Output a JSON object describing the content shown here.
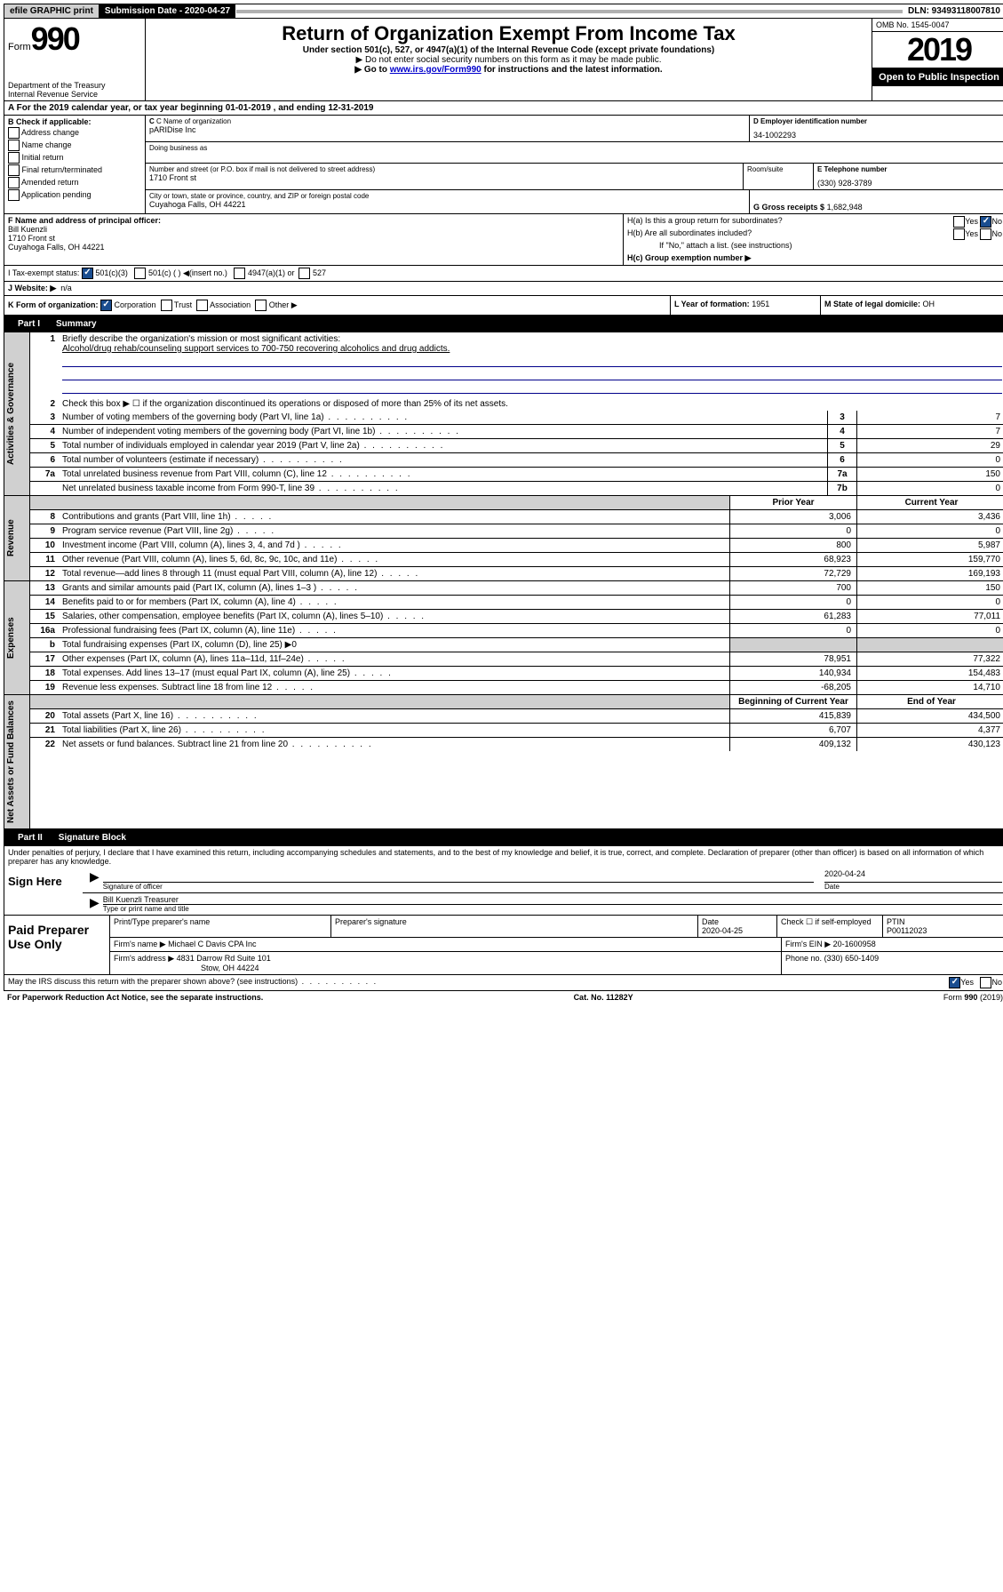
{
  "topbar": {
    "efile": "efile GRAPHIC print",
    "subdate_label": "Submission Date  -  2020-04-27",
    "dln": "DLN: 93493118007810"
  },
  "header": {
    "form_label": "Form",
    "form_num": "990",
    "dept": "Department of the Treasury\nInternal Revenue Service",
    "title": "Return of Organization Exempt From Income Tax",
    "subtitle": "Under section 501(c), 527, or 4947(a)(1) of the Internal Revenue Code (except private foundations)",
    "note1": "▶ Do not enter social security numbers on this form as it may be made public.",
    "note2_pre": "▶ Go to ",
    "note2_link": "www.irs.gov/Form990",
    "note2_post": " for instructions and the latest information.",
    "omb": "OMB No. 1545-0047",
    "year": "2019",
    "open": "Open to Public Inspection"
  },
  "row_a": "A For the 2019 calendar year, or tax year beginning 01-01-2019    , and ending 12-31-2019",
  "section_b": {
    "header": "B Check if applicable:",
    "opts": [
      "Address change",
      "Name change",
      "Initial return",
      "Final return/terminated",
      "Amended return",
      "Application pending"
    ]
  },
  "section_c": {
    "name_label": "C Name of organization",
    "name": "pARIDise Inc",
    "dba_label": "Doing business as",
    "addr_label": "Number and street (or P.O. box if mail is not delivered to street address)",
    "room_label": "Room/suite",
    "addr": "1710 Front st",
    "city_label": "City or town, state or province, country, and ZIP or foreign postal code",
    "city": "Cuyahoga Falls, OH  44221"
  },
  "section_d": {
    "label": "D Employer identification number",
    "val": "34-1002293"
  },
  "section_e": {
    "label": "E Telephone number",
    "val": "(330) 928-3789"
  },
  "section_g": {
    "label": "G Gross receipts $",
    "val": "1,682,948"
  },
  "section_f": {
    "label": "F  Name and address of principal officer:",
    "name": "Bill Kuenzli",
    "addr1": "1710 Front st",
    "addr2": "Cuyahoga Falls, OH  44221"
  },
  "section_h": {
    "ha": "H(a)  Is this a group return for subordinates?",
    "hb": "H(b)  Are all subordinates included?",
    "hb_note": "If \"No,\" attach a list. (see instructions)",
    "hc": "H(c)  Group exemption number ▶",
    "yes": "Yes",
    "no": "No"
  },
  "section_i": {
    "label": "I    Tax-exempt status:",
    "o1": "501(c)(3)",
    "o2": "501(c) (   ) ◀(insert no.)",
    "o3": "4947(a)(1) or",
    "o4": "527"
  },
  "section_j": {
    "label": "J    Website: ▶",
    "val": "n/a"
  },
  "section_k": {
    "label": "K Form of organization:",
    "o1": "Corporation",
    "o2": "Trust",
    "o3": "Association",
    "o4": "Other ▶"
  },
  "section_l": {
    "label": "L Year of formation:",
    "val": "1951"
  },
  "section_m": {
    "label": "M State of legal domicile:",
    "val": "OH"
  },
  "part1": {
    "label": "Part I",
    "title": "Summary"
  },
  "summary": {
    "governance_label": "Activities & Governance",
    "revenue_label": "Revenue",
    "expenses_label": "Expenses",
    "netassets_label": "Net Assets or Fund Balances",
    "q1_label": "Briefly describe the organization's mission or most significant activities:",
    "q1_val": "Alcohol/drug rehab/counseling support services to 700-750 recovering alcoholics and drug addicts.",
    "q2_label": "Check this box ▶ ☐  if the organization discontinued its operations or disposed of more than 25% of its net assets.",
    "prior_year": "Prior Year",
    "current_year": "Current Year",
    "beg_year": "Beginning of Current Year",
    "end_year": "End of Year",
    "rows_gov": [
      {
        "n": "3",
        "desc": "Number of voting members of the governing body (Part VI, line 1a)",
        "box": "3",
        "val": "7"
      },
      {
        "n": "4",
        "desc": "Number of independent voting members of the governing body (Part VI, line 1b)",
        "box": "4",
        "val": "7"
      },
      {
        "n": "5",
        "desc": "Total number of individuals employed in calendar year 2019 (Part V, line 2a)",
        "box": "5",
        "val": "29"
      },
      {
        "n": "6",
        "desc": "Total number of volunteers (estimate if necessary)",
        "box": "6",
        "val": "0"
      },
      {
        "n": "7a",
        "desc": "Total unrelated business revenue from Part VIII, column (C), line 12",
        "box": "7a",
        "val": "150"
      },
      {
        "n": "",
        "desc": "Net unrelated business taxable income from Form 990-T, line 39",
        "box": "7b",
        "val": "0"
      }
    ],
    "rows_rev": [
      {
        "n": "8",
        "desc": "Contributions and grants (Part VIII, line 1h)",
        "py": "3,006",
        "cy": "3,436"
      },
      {
        "n": "9",
        "desc": "Program service revenue (Part VIII, line 2g)",
        "py": "0",
        "cy": "0"
      },
      {
        "n": "10",
        "desc": "Investment income (Part VIII, column (A), lines 3, 4, and 7d )",
        "py": "800",
        "cy": "5,987"
      },
      {
        "n": "11",
        "desc": "Other revenue (Part VIII, column (A), lines 5, 6d, 8c, 9c, 10c, and 11e)",
        "py": "68,923",
        "cy": "159,770"
      },
      {
        "n": "12",
        "desc": "Total revenue—add lines 8 through 11 (must equal Part VIII, column (A), line 12)",
        "py": "72,729",
        "cy": "169,193"
      }
    ],
    "rows_exp": [
      {
        "n": "13",
        "desc": "Grants and similar amounts paid (Part IX, column (A), lines 1–3 )",
        "py": "700",
        "cy": "150"
      },
      {
        "n": "14",
        "desc": "Benefits paid to or for members (Part IX, column (A), line 4)",
        "py": "0",
        "cy": "0"
      },
      {
        "n": "15",
        "desc": "Salaries, other compensation, employee benefits (Part IX, column (A), lines 5–10)",
        "py": "61,283",
        "cy": "77,011"
      },
      {
        "n": "16a",
        "desc": "Professional fundraising fees (Part IX, column (A), line 11e)",
        "py": "0",
        "cy": "0"
      },
      {
        "n": "b",
        "desc": "Total fundraising expenses (Part IX, column (D), line 25) ▶0",
        "py": "",
        "cy": "",
        "shaded": true
      },
      {
        "n": "17",
        "desc": "Other expenses (Part IX, column (A), lines 11a–11d, 11f–24e)",
        "py": "78,951",
        "cy": "77,322"
      },
      {
        "n": "18",
        "desc": "Total expenses. Add lines 13–17 (must equal Part IX, column (A), line 25)",
        "py": "140,934",
        "cy": "154,483"
      },
      {
        "n": "19",
        "desc": "Revenue less expenses. Subtract line 18 from line 12",
        "py": "-68,205",
        "cy": "14,710"
      }
    ],
    "rows_net": [
      {
        "n": "20",
        "desc": "Total assets (Part X, line 16)",
        "py": "415,839",
        "cy": "434,500"
      },
      {
        "n": "21",
        "desc": "Total liabilities (Part X, line 26)",
        "py": "6,707",
        "cy": "4,377"
      },
      {
        "n": "22",
        "desc": "Net assets or fund balances. Subtract line 21 from line 20",
        "py": "409,132",
        "cy": "430,123"
      }
    ]
  },
  "part2": {
    "label": "Part II",
    "title": "Signature Block",
    "penalty": "Under penalties of perjury, I declare that I have examined this return, including accompanying schedules and statements, and to the best of my knowledge and belief, it is true, correct, and complete. Declaration of preparer (other than officer) is based on all information of which preparer has any knowledge.",
    "sign_here": "Sign Here",
    "sig_officer": "Signature of officer",
    "date": "Date",
    "date_val": "2020-04-24",
    "name_title_val": "Bill Kuenzli  Treasurer",
    "name_title": "Type or print name and title"
  },
  "paid": {
    "label": "Paid Preparer Use Only",
    "print_name": "Print/Type preparer's name",
    "prep_sig": "Preparer's signature",
    "date_label": "Date",
    "date_val": "2020-04-25",
    "check_label": "Check ☐ if self-employed",
    "ptin_label": "PTIN",
    "ptin_val": "P00112023",
    "firm_name_label": "Firm's name     ▶",
    "firm_name": "Michael C Davis CPA Inc",
    "firm_ein_label": "Firm's EIN ▶",
    "firm_ein": "20-1600958",
    "firm_addr_label": "Firm's address ▶",
    "firm_addr": "4831 Darrow Rd Suite 101",
    "firm_city": "Stow, OH  44224",
    "phone_label": "Phone no.",
    "phone": "(330) 650-1409"
  },
  "footer": {
    "discuss": "May the IRS discuss this return with the preparer shown above? (see instructions)",
    "yes": "Yes",
    "no": "No",
    "paperwork": "For Paperwork Reduction Act Notice, see the separate instructions.",
    "cat": "Cat. No. 11282Y",
    "form": "Form 990 (2019)"
  }
}
